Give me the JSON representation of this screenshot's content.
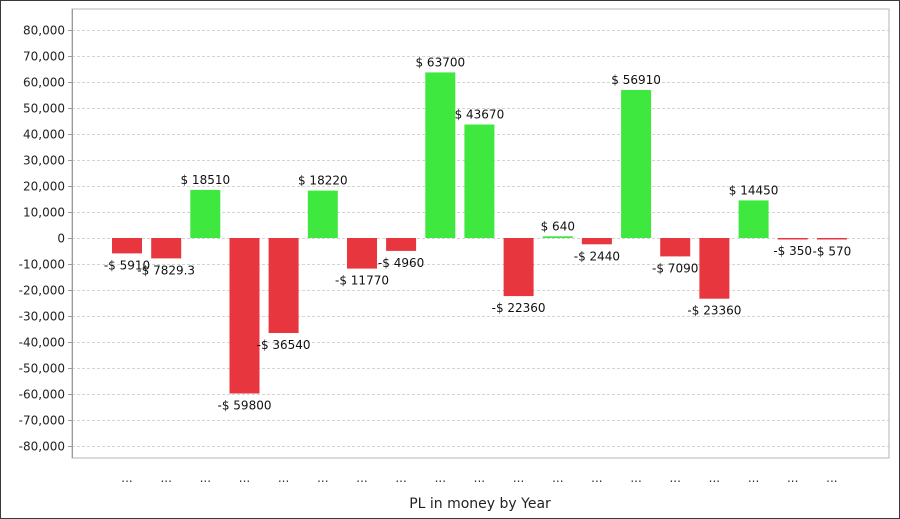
{
  "chart_data": {
    "type": "bar",
    "title": "",
    "xlabel": "PL in money by Year",
    "ylabel": "",
    "ylim": [
      -85000,
      85000
    ],
    "yticks": [
      80000,
      70000,
      60000,
      50000,
      40000,
      30000,
      20000,
      10000,
      0,
      -10000,
      -20000,
      -30000,
      -40000,
      -50000,
      -60000,
      -70000,
      -80000
    ],
    "ytick_labels": [
      "80,000",
      "70,000",
      "60,000",
      "50,000",
      "40,000",
      "30,000",
      "20,000",
      "10,000",
      "0",
      "-10,000",
      "-20,000",
      "-30,000",
      "-40,000",
      "-50,000",
      "-60,000",
      "-70,000",
      "-80,000"
    ],
    "categories": [
      "...",
      "...",
      "...",
      "...",
      "...",
      "...",
      "...",
      "...",
      "...",
      "...",
      "...",
      "...",
      "...",
      "...",
      "...",
      "...",
      "...",
      "...",
      "..."
    ],
    "values": [
      -5910,
      -7829.3,
      18510,
      -59800,
      -36540,
      18220,
      -11770,
      -4960,
      63700,
      43670,
      -22360,
      640,
      -2440,
      56910,
      -7090,
      -23360,
      14450,
      -350,
      -570
    ],
    "data_labels": [
      "-$ 5910",
      "-$ 7829.3",
      "$ 18510",
      "-$ 59800",
      "-$ 36540",
      "$ 18220",
      "-$ 11770",
      "-$ 4960",
      "$ 63700",
      "$ 43670",
      "-$ 22360",
      "$ 640",
      "-$ 2440",
      "$ 56910",
      "-$ 7090",
      "-$ 23360",
      "$ 14450",
      "-$ 350",
      "-$ 570"
    ],
    "grid": true,
    "legend": "none",
    "colors": {
      "positive": "#3ee83e",
      "negative": "#e8363e",
      "grid": "#d4d4d4",
      "axis": "#9a9a9a",
      "plot_border": "#b4b4b4"
    }
  }
}
